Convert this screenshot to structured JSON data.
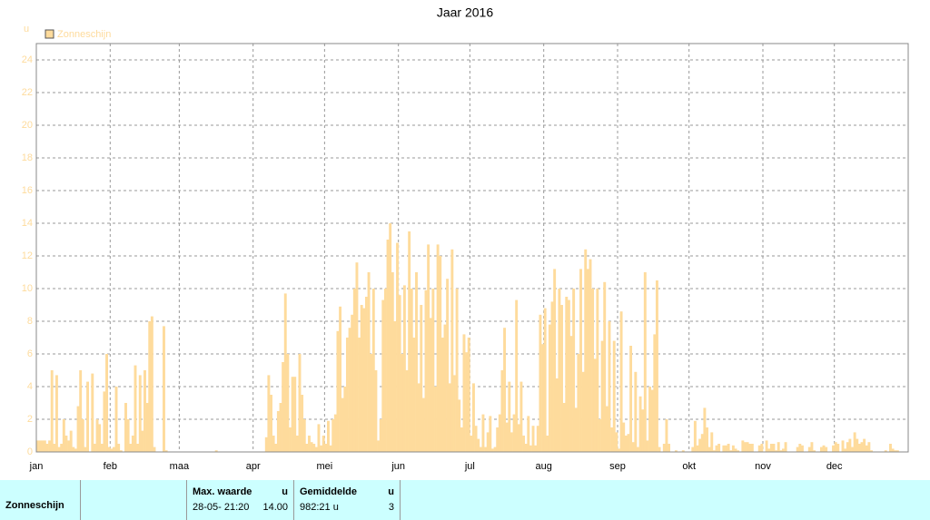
{
  "chart_data": {
    "type": "bar",
    "title": "Jaar 2016",
    "y_label": "u",
    "series": [
      {
        "name": "Zonneschijn",
        "color": "#fedb9c",
        "values": [
          0.7,
          0.7,
          0.7,
          0.7,
          0.5,
          0.7,
          5,
          0.5,
          4.7,
          0.3,
          0.5,
          2,
          1,
          0.7,
          1.3,
          0.3,
          0.2,
          2.8,
          5,
          2,
          0.3,
          4.3,
          0,
          4.8,
          0.5,
          2,
          1.7,
          0.5,
          3.7,
          6,
          0.3,
          0.2,
          0.3,
          4,
          0.5,
          0.1,
          0,
          3,
          2,
          0.5,
          1,
          5.3,
          0.5,
          4.7,
          1.3,
          5,
          3,
          8,
          8.3,
          0.3,
          0,
          0,
          0,
          7.7,
          0.1,
          0,
          0,
          0,
          0,
          0,
          0,
          0,
          0,
          0,
          0,
          0,
          0,
          0,
          0,
          0,
          0,
          0,
          0,
          0,
          0,
          0.1,
          0,
          0,
          0,
          0,
          0,
          0,
          0,
          0,
          0,
          0,
          0,
          0,
          0,
          0,
          0,
          0,
          0,
          0,
          0,
          0,
          0.9,
          4.7,
          3.5,
          1,
          0.5,
          2.5,
          3,
          5.5,
          9.7,
          6,
          1.5,
          4.6,
          4.6,
          1,
          6,
          3.5,
          2,
          0.5,
          1,
          0.6,
          0.5,
          0.3,
          1.7,
          0.4,
          1,
          0.5,
          1.9,
          0.4,
          2,
          2.3,
          7.4,
          8.9,
          3.3,
          4,
          7,
          7.6,
          8.4,
          10,
          11.6,
          7,
          9,
          8.8,
          9.5,
          11,
          6,
          10,
          5,
          0.7,
          2,
          9.3,
          10,
          13,
          14,
          11,
          8,
          12.8,
          9.6,
          6,
          10.2,
          5,
          13.5,
          10,
          7,
          11,
          4.2,
          9,
          3.3,
          9.9,
          12.7,
          8.2,
          10,
          4,
          12.7,
          12,
          7,
          7.8,
          10.6,
          4.2,
          12.4,
          4.7,
          10,
          3.2,
          1.5,
          7.2,
          6.1,
          7,
          1,
          4.2,
          1.6,
          0.8,
          0.3,
          2.3,
          0.3,
          1.2,
          2.2,
          0.2,
          0.3,
          1.5,
          2.3,
          5,
          7.6,
          1.8,
          4.3,
          1.2,
          2.3,
          9.3,
          1.7,
          4.3,
          1,
          0.5,
          2.2,
          0.4,
          1.6,
          0.4,
          1.6,
          8.4,
          6.6,
          8.8,
          1,
          7.8,
          9.2,
          11.2,
          4.5,
          10,
          9,
          3,
          9.5,
          9.3,
          7.1,
          10,
          2.7,
          6,
          11.2,
          4.9,
          12.4,
          11.2,
          11.8,
          10,
          5.7,
          10,
          2,
          6.8,
          10.4,
          2.8,
          8,
          1.5,
          6.8,
          1.2,
          0.2,
          8.6,
          1.8,
          1,
          1.1,
          6.5,
          0.6,
          4.9,
          0.3,
          3.4,
          2.6,
          11,
          0.7,
          4,
          3.8,
          7.2,
          10.5,
          0.3,
          0,
          0.5,
          2,
          0.5,
          0,
          0,
          0.1,
          0,
          0,
          0.1,
          0,
          0,
          0,
          0.3,
          1.9,
          0.4,
          0.8,
          1.1,
          2.7,
          1.5,
          0.3,
          1.2,
          0.1,
          0.4,
          0.5,
          0,
          0.4,
          0.4,
          0.5,
          0.1,
          0.4,
          0.2,
          0.1,
          0,
          0.7,
          0.6,
          0.6,
          0.5,
          0.5,
          0,
          0,
          0.4,
          0.5,
          0,
          0.7,
          0.2,
          0.5,
          0.5,
          0.1,
          0.6,
          0.1,
          0.2,
          0.6,
          0,
          0,
          0,
          0,
          0.3,
          0.5,
          0.4,
          0,
          0,
          0.3,
          0.6,
          0.1,
          0,
          0,
          0.3,
          0.4,
          0.3,
          0,
          0,
          0.4,
          0.6,
          0.5,
          0,
          0.7,
          0.2,
          0.6,
          0.8,
          0.3,
          1.2,
          0.8,
          0.5,
          0.6,
          0.8,
          0.4,
          0.6,
          0.1,
          0,
          0,
          0,
          0,
          0,
          0.1,
          0,
          0.5,
          0.2,
          0.1,
          0.1,
          0,
          0,
          0,
          0
        ]
      }
    ],
    "categories": [
      "jan",
      null,
      null,
      null,
      null,
      null,
      null,
      null,
      null,
      null,
      null,
      null,
      null,
      null,
      null,
      null,
      null,
      null,
      null,
      null,
      null,
      null,
      null,
      null,
      null,
      null,
      null,
      null,
      null,
      null,
      null,
      "feb",
      null,
      null,
      null,
      null,
      null,
      null,
      null,
      null,
      null,
      null,
      null,
      null,
      null,
      null,
      null,
      null,
      null,
      null,
      null,
      null,
      null,
      null,
      null,
      null,
      null,
      null,
      null,
      null,
      "maa",
      null,
      null,
      null,
      null,
      null,
      null,
      null,
      null,
      null,
      null,
      null,
      null,
      null,
      null,
      null,
      null,
      null,
      null,
      null,
      null,
      null,
      null,
      null,
      null,
      null,
      null,
      null,
      null,
      null,
      null,
      "apr",
      null,
      null,
      null,
      null,
      null,
      null,
      null,
      null,
      null,
      null,
      null,
      null,
      null,
      null,
      null,
      null,
      null,
      null,
      null,
      null,
      null,
      null,
      null,
      null,
      null,
      null,
      null,
      null,
      null,
      "mei",
      null,
      null,
      null,
      null,
      null,
      null,
      null,
      null,
      null,
      null,
      null,
      null,
      null,
      null,
      null,
      null,
      null,
      null,
      null,
      null,
      null,
      null,
      null,
      null,
      null,
      null,
      null,
      null,
      null,
      null,
      "jun",
      null,
      null,
      null,
      null,
      null,
      null,
      null,
      null,
      null,
      null,
      null,
      null,
      null,
      null,
      null,
      null,
      null,
      null,
      null,
      null,
      null,
      null,
      null,
      null,
      null,
      null,
      null,
      null,
      null,
      "jul",
      null,
      null,
      null,
      null,
      null,
      null,
      null,
      null,
      null,
      null,
      null,
      null,
      null,
      null,
      null,
      null,
      null,
      null,
      null,
      null,
      null,
      null,
      null,
      null,
      null,
      null,
      null,
      null,
      null,
      null,
      "aug",
      null,
      null,
      null,
      null,
      null,
      null,
      null,
      null,
      null,
      null,
      null,
      null,
      null,
      null,
      null,
      null,
      null,
      null,
      null,
      null,
      null,
      null,
      null,
      null,
      null,
      null,
      null,
      null,
      null,
      null,
      "sep",
      null,
      null,
      null,
      null,
      null,
      null,
      null,
      null,
      null,
      null,
      null,
      null,
      null,
      null,
      null,
      null,
      null,
      null,
      null,
      null,
      null,
      null,
      null,
      null,
      null,
      null,
      null,
      null,
      null,
      "okt",
      null,
      null,
      null,
      null,
      null,
      null,
      null,
      null,
      null,
      null,
      null,
      null,
      null,
      null,
      null,
      null,
      null,
      null,
      null,
      null,
      null,
      null,
      null,
      null,
      null,
      null,
      null,
      null,
      null,
      null,
      "nov",
      null,
      null,
      null,
      null,
      null,
      null,
      null,
      null,
      null,
      null,
      null,
      null,
      null,
      null,
      null,
      null,
      null,
      null,
      null,
      null,
      null,
      null,
      null,
      null,
      null,
      null,
      null,
      null,
      null,
      "dec",
      null,
      null,
      null,
      null,
      null,
      null,
      null,
      null,
      null,
      null,
      null,
      null,
      null,
      null,
      null,
      null,
      null,
      null,
      null,
      null,
      null,
      null,
      null,
      null,
      null,
      null,
      null,
      null,
      null,
      null
    ],
    "ylim": [
      0,
      25
    ],
    "yticks": [
      0,
      2,
      4,
      6,
      8,
      10,
      12,
      14,
      16,
      18,
      20,
      22,
      24
    ],
    "grid": true,
    "legend": "top-left"
  },
  "table": {
    "header": [
      "Max. waarde",
      "u",
      "Gemiddelde",
      "u"
    ],
    "rows": [
      [
        "Zonneschijn",
        "28-05- 21:20",
        "14.00",
        "982:21 u",
        "3"
      ]
    ]
  }
}
